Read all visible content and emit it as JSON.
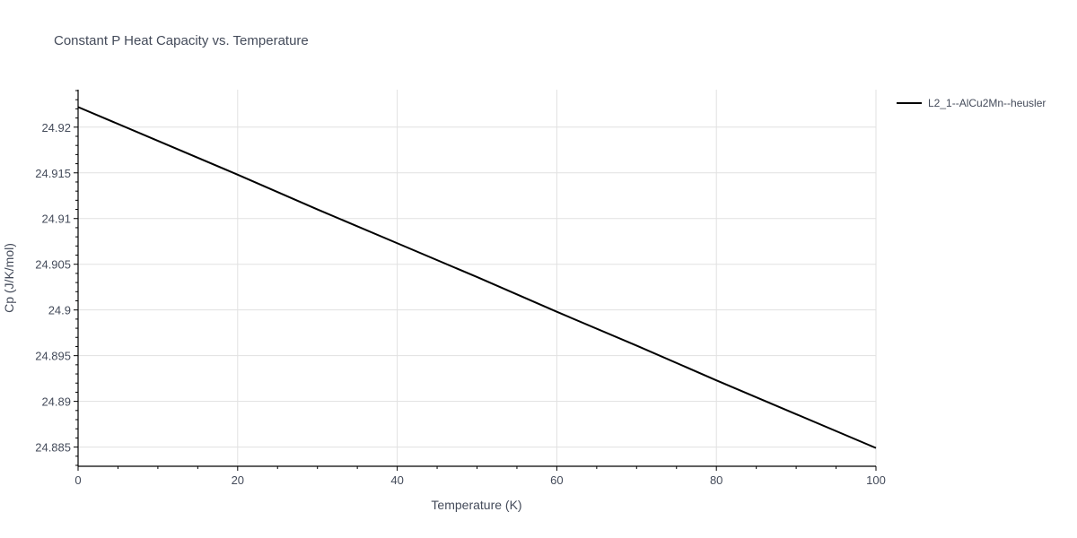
{
  "chart_data": {
    "type": "line",
    "title": "Constant P Heat Capacity vs. Temperature",
    "xlabel": "Temperature (K)",
    "ylabel": "Cp (J/K/mol)",
    "xlim": [
      0,
      100
    ],
    "ylim": [
      24.8829,
      24.9241
    ],
    "x_ticks": [
      0,
      20,
      40,
      60,
      80,
      100
    ],
    "x_tick_labels": [
      "0",
      "20",
      "40",
      "60",
      "80",
      "100"
    ],
    "y_ticks": [
      24.885,
      24.89,
      24.895,
      24.9,
      24.905,
      24.91,
      24.915,
      24.92
    ],
    "y_tick_labels": [
      "24.885",
      "24.89",
      "24.895",
      "24.9",
      "24.905",
      "24.91",
      "24.915",
      "24.92"
    ],
    "grid": true,
    "legend_position": "top-right",
    "series": [
      {
        "name": "L2_1--AlCu2Mn--heusler",
        "color": "#000000",
        "x": [
          0,
          10,
          20,
          30,
          40,
          50,
          60,
          70,
          80,
          90,
          100
        ],
        "y": [
          24.9222,
          24.9185,
          24.9148,
          24.911,
          24.9073,
          24.9036,
          24.8998,
          24.8961,
          24.8923,
          24.8886,
          24.8849
        ]
      }
    ]
  }
}
